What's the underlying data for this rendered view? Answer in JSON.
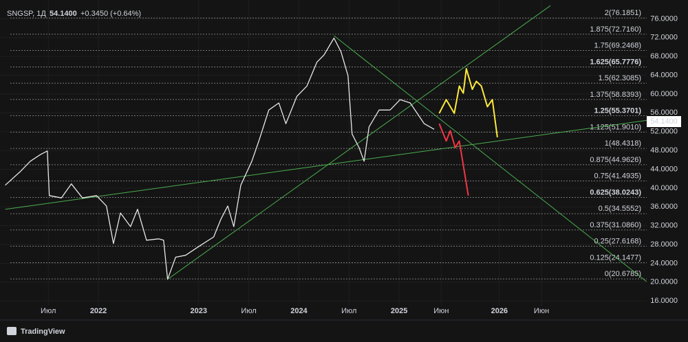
{
  "chart_data": {
    "type": "line",
    "header": {
      "symbol": "SNGSP, 1Д",
      "last": {
        "value": 54.14,
        "label": "54.1400"
      },
      "change": "+0.3450 (+0.64%)"
    },
    "branding": "TradingView",
    "xlim": [
      2021.018,
      2027.47
    ],
    "ylim": [
      15,
      80
    ],
    "yticks": [
      {
        "value": 16,
        "label": "16.0000"
      },
      {
        "value": 20,
        "label": "20.0000"
      },
      {
        "value": 24,
        "label": "24.0000"
      },
      {
        "value": 28,
        "label": "28.0000"
      },
      {
        "value": 32,
        "label": "32.0000"
      },
      {
        "value": 36,
        "label": "36.0000"
      },
      {
        "value": 40,
        "label": "40.0000"
      },
      {
        "value": 44,
        "label": "44.0000"
      },
      {
        "value": 48,
        "label": "48.0000"
      },
      {
        "value": 52,
        "label": "52.0000"
      },
      {
        "value": 56,
        "label": "56.0000"
      },
      {
        "value": 60,
        "label": "60.0000"
      },
      {
        "value": 64,
        "label": "64.0000"
      },
      {
        "value": 68,
        "label": "68.0000"
      },
      {
        "value": 72,
        "label": "72.0000"
      },
      {
        "value": 76,
        "label": "76.0000"
      }
    ],
    "xticks": [
      {
        "value": 2021.5,
        "label": "Июл"
      },
      2022,
      2023,
      {
        "value": 2023.5,
        "label": "Июл"
      },
      2024,
      {
        "value": 2024.5,
        "label": "Июл"
      },
      2025,
      {
        "value": 2025.42,
        "label": "Июн"
      },
      2026,
      {
        "value": 2026.42,
        "label": "Июн"
      }
    ],
    "grid": true,
    "fib_levels": [
      {
        "label": "2(76.1851)",
        "value": 76.1851,
        "bold": false
      },
      {
        "label": "1.875(72.7160)",
        "value": 72.716,
        "bold": false
      },
      {
        "label": "1.75(69.2468)",
        "value": 69.2468,
        "bold": false
      },
      {
        "label": "1.625(65.7776)",
        "value": 65.7776,
        "bold": true
      },
      {
        "label": "1.5(62.3085)",
        "value": 62.3085,
        "bold": false
      },
      {
        "label": "1.375(58.8393)",
        "value": 58.8393,
        "bold": false
      },
      {
        "label": "1.25(55.3701)",
        "value": 55.3701,
        "bold": true
      },
      {
        "label": "1.125(51.9010)",
        "value": 51.901,
        "bold": false
      },
      {
        "label": "1(48.4318)",
        "value": 48.4318,
        "bold": false
      },
      {
        "label": "0.875(44.9626)",
        "value": 44.9626,
        "bold": false
      },
      {
        "label": "0.75(41.4935)",
        "value": 41.4935,
        "bold": false
      },
      {
        "label": "0.625(38.0243)",
        "value": 38.0243,
        "bold": true
      },
      {
        "label": "0.5(34.5552)",
        "value": 34.5552,
        "bold": false
      },
      {
        "label": "0.375(31.0860)",
        "value": 31.086,
        "bold": false
      },
      {
        "label": "0.25(27.6168)",
        "value": 27.6168,
        "bold": false
      },
      {
        "label": "0.125(24.1477)",
        "value": 24.1477,
        "bold": false
      },
      {
        "label": "0(20.6785)",
        "value": 20.6785,
        "bold": false
      }
    ],
    "series": [
      {
        "color": "#e8e8e8",
        "x": [
          2021.07,
          2021.22,
          2021.32,
          2021.42,
          2021.49,
          2021.51,
          2021.63,
          2021.73,
          2021.84,
          2021.98,
          2022.08,
          2022.15,
          2022.22,
          2022.32,
          2022.39,
          2022.48,
          2022.6,
          2022.65,
          2022.69,
          2022.77,
          2022.87,
          2023.01,
          2023.15,
          2023.22,
          2023.29,
          2023.35,
          2023.42,
          2023.53,
          2023.6,
          2023.7,
          2023.8,
          2023.87,
          2023.98,
          2024.08,
          2024.18,
          2024.25,
          2024.35,
          2024.42,
          2024.49,
          2024.53,
          2024.6,
          2024.65,
          2024.7,
          2024.8,
          2024.91,
          2025.01,
          2025.11,
          2025.18,
          2025.25,
          2025.35
        ],
        "values": [
          40.6,
          43.5,
          45.7,
          47.1,
          47.9,
          38.4,
          37.9,
          40.9,
          37.9,
          38.4,
          36.2,
          28.2,
          34.7,
          31.8,
          35.5,
          28.9,
          29.2,
          28.9,
          20.6,
          25.3,
          25.7,
          27.7,
          29.6,
          33.3,
          36.2,
          31.8,
          40.6,
          45.7,
          50.0,
          56.6,
          58.1,
          53.7,
          59.5,
          61.7,
          66.8,
          68.3,
          71.9,
          69.0,
          63.9,
          51.5,
          48.6,
          45.7,
          53.0,
          56.6,
          56.6,
          58.8,
          58.1,
          55.9,
          53.7,
          52.5
        ]
      },
      {
        "color": "#ffeb3b",
        "x": [
          2025.4,
          2025.47,
          2025.55,
          2025.6,
          2025.64,
          2025.67,
          2025.73,
          2025.77,
          2025.82,
          2025.88,
          2025.93,
          2025.98
        ],
        "values": [
          55.9,
          58.8,
          55.9,
          61.7,
          60.2,
          65.4,
          61.0,
          62.7,
          61.7,
          57.3,
          58.8,
          50.8
        ]
      },
      {
        "color": "#f23645",
        "x": [
          2025.4,
          2025.47,
          2025.51,
          2025.56,
          2025.6,
          2025.69
        ],
        "values": [
          53.7,
          50.0,
          52.2,
          48.6,
          50.0,
          38.4
        ]
      }
    ],
    "trendlines": [
      {
        "color": "#4caf50",
        "x": [
          2022.69,
          2026.51
        ],
        "values": [
          20.6,
          78.8
        ]
      },
      {
        "color": "#4caf50",
        "x": [
          2021.07,
          2027.47
        ],
        "values": [
          35.5,
          54.4
        ]
      },
      {
        "color": "#4caf50",
        "x": [
          2024.35,
          2027.47
        ],
        "values": [
          72.4,
          20.1
        ]
      }
    ]
  }
}
